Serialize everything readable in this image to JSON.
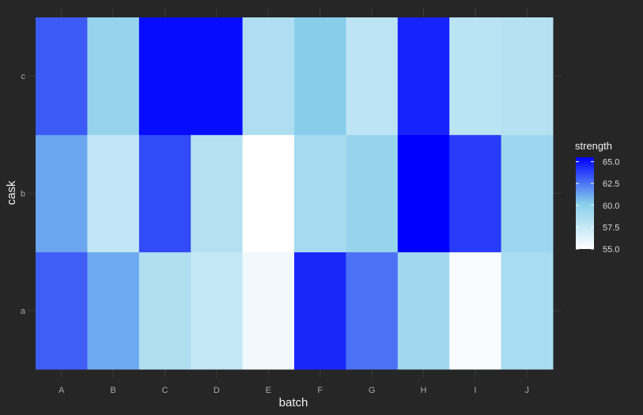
{
  "chart_data": {
    "type": "heatmap",
    "xlabel": "batch",
    "ylabel": "cask",
    "x_categories": [
      "A",
      "B",
      "C",
      "D",
      "E",
      "F",
      "G",
      "H",
      "I",
      "J"
    ],
    "y_categories": [
      "a",
      "b",
      "c"
    ],
    "values": [
      [
        63.1,
        61.2,
        58.4,
        57.6,
        55.6,
        64.5,
        62.6,
        59.2,
        55.3,
        58.8
      ],
      [
        61.3,
        57.7,
        63.6,
        58.3,
        55.0,
        58.9,
        59.6,
        65.5,
        64.0,
        59.3
      ],
      [
        63.2,
        59.6,
        65.2,
        65.2,
        58.5,
        60.2,
        57.9,
        64.6,
        58.0,
        58.2
      ]
    ],
    "legend": {
      "title": "strength",
      "ticks": [
        "55.0",
        "57.5",
        "60.0",
        "62.5",
        "65.0"
      ],
      "tick_values": [
        55.0,
        57.5,
        60.0,
        62.5,
        65.0
      ],
      "range": [
        55.0,
        65.5
      ],
      "placement": "right"
    },
    "colors": {
      "low": "#ffffff",
      "mid": "#87ceeb",
      "high": "#0000ff",
      "background": "#262626",
      "grid": "#3a3a3a"
    },
    "grid": true
  }
}
